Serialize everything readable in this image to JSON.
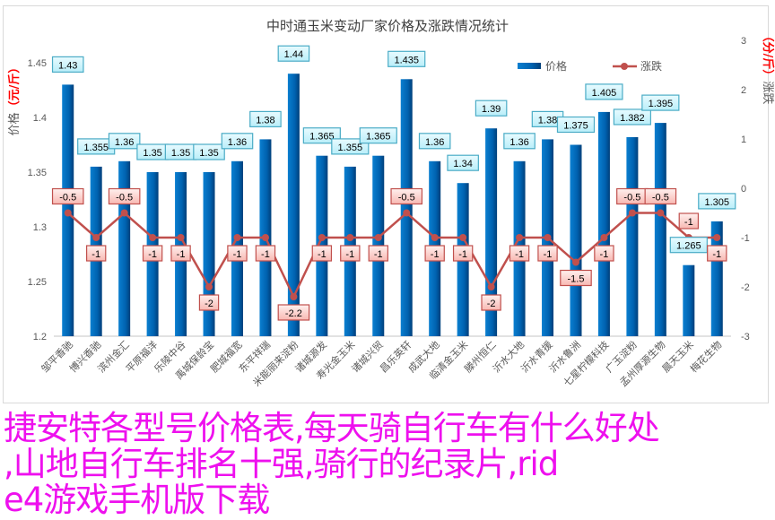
{
  "chart_data": {
    "type": "bar+line",
    "title": "中时通玉米变动厂家价格及涨跌情况统计",
    "ylabel_left": {
      "main": "价格",
      "unit": "（元/斤）"
    },
    "ylabel_right": {
      "main": "涨跌",
      "unit": "（分/斤）"
    },
    "ylim_left": [
      1.2,
      1.45
    ],
    "yticks_left": [
      "1.2",
      "1.25",
      "1.3",
      "1.35",
      "1.4",
      "1.45"
    ],
    "ylim_right": [
      -3,
      3
    ],
    "yticks_right": [
      "-3",
      "-2",
      "-1",
      "0",
      "1",
      "2",
      "3"
    ],
    "legend_position": "top-right",
    "categories": [
      "邹平香驰",
      "博兴香驰",
      "滨州金汇",
      "平原福洋",
      "乐陵中谷",
      "禹城保龄宝",
      "肥城福宽",
      "东平祥瑞",
      "米能丽来淀粉",
      "诸城源发",
      "寿光金玉米",
      "诸城兴贸",
      "昌乐英轩",
      "成武大地",
      "临清金玉米",
      "滕州恒仁",
      "沂水大地",
      "沂水青援",
      "沂水鲁洲",
      "七星柠檬科技",
      "广玉淀粉",
      "孟州厚源生物",
      "晨天玉米",
      "梅花生物"
    ],
    "series": [
      {
        "name": "价格",
        "type": "bar",
        "axis": "left",
        "color": "#0070c0",
        "values": [
          1.43,
          1.355,
          1.36,
          1.35,
          1.35,
          1.35,
          1.36,
          1.38,
          1.44,
          1.365,
          1.355,
          1.365,
          1.435,
          1.36,
          1.34,
          1.39,
          1.36,
          1.38,
          1.375,
          1.405,
          1.382,
          1.395,
          1.265,
          1.305
        ]
      },
      {
        "name": "涨跌",
        "type": "line",
        "axis": "right",
        "color": "#c0504d",
        "values": [
          -0.5,
          -1,
          -0.5,
          -1,
          -1,
          -2,
          -1,
          -1,
          -2.2,
          -1,
          -1,
          -1,
          -0.5,
          -1,
          -1,
          -2,
          -1,
          -1,
          -1.5,
          -1,
          -0.5,
          -0.5,
          -1,
          -1
        ]
      }
    ]
  },
  "overlay_text": [
    "捷安特各型号价格表,每天骑自行车有什么好处",
    ",山地自行车排名十强,骑行的纪录片,rid",
    "e4游戏手机版下载"
  ]
}
